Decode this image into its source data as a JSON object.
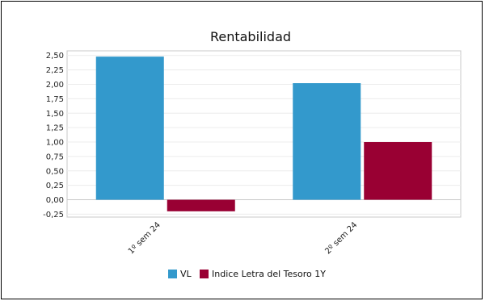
{
  "chart_data": {
    "type": "bar",
    "title": "Rentabilidad",
    "categories": [
      "1º sem 24",
      "2º sem 24"
    ],
    "series": [
      {
        "name": "VL",
        "values": [
          2.48,
          2.02
        ],
        "color": "#3399CC"
      },
      {
        "name": "Indice Letra del Tesoro 1Y",
        "values": [
          -0.2,
          1.0
        ],
        "color": "#990033"
      }
    ],
    "ylim": [
      -0.3,
      2.58
    ],
    "yticks": [
      "2,50",
      "2,25",
      "2,00",
      "1,75",
      "1,50",
      "1,25",
      "1,00",
      "0,75",
      "0,50",
      "0,25",
      "0,00",
      "-0,25"
    ],
    "ytick_values": [
      2.5,
      2.25,
      2.0,
      1.75,
      1.5,
      1.25,
      1.0,
      0.75,
      0.5,
      0.25,
      0.0,
      -0.25
    ],
    "grid": true,
    "legend_position": "bottom"
  }
}
